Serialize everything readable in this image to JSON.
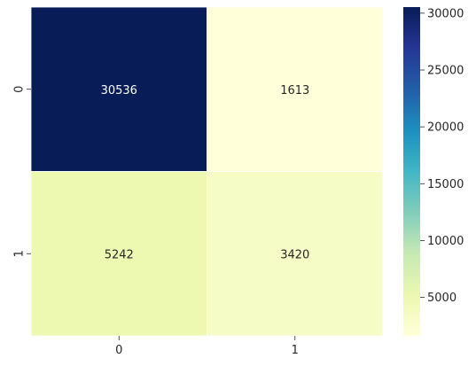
{
  "chart_data": {
    "type": "heatmap",
    "title": "",
    "xlabel": "",
    "ylabel": "",
    "x_categories": [
      "0",
      "1"
    ],
    "y_categories": [
      "0",
      "1"
    ],
    "matrix": [
      [
        30536,
        1613
      ],
      [
        5242,
        3420
      ]
    ],
    "cell_labels": [
      [
        "30536",
        "1613"
      ],
      [
        "5242",
        "3420"
      ]
    ],
    "colormap": "YlGnBu",
    "colorbar": {
      "range": [
        1613,
        30536
      ],
      "ticks": [
        5000,
        10000,
        15000,
        20000,
        25000,
        30000
      ],
      "tick_labels": [
        "5000",
        "10000",
        "15000",
        "20000",
        "25000",
        "30000"
      ]
    },
    "grid": false,
    "cell_border_color": "#ffffff"
  }
}
